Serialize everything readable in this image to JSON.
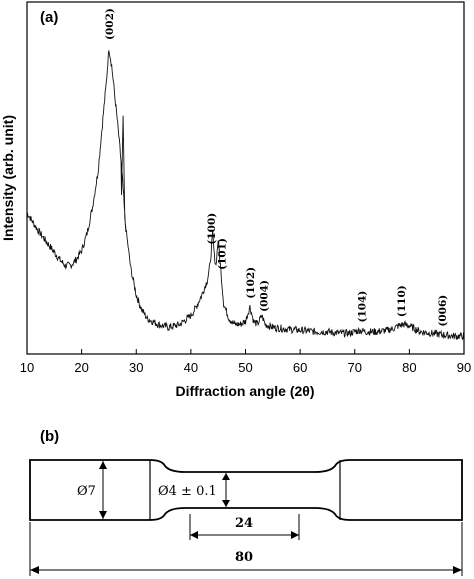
{
  "figure": {
    "panel_a_label": "(a)",
    "panel_b_label": "(b)"
  },
  "chart_data": {
    "type": "line",
    "xlabel": "Diffraction angle (2θ)",
    "ylabel": "Intensity (arb. unit)",
    "xlim": [
      10,
      90
    ],
    "xticks": [
      10,
      20,
      30,
      40,
      50,
      60,
      70,
      80,
      90
    ],
    "y_ticks_shown": false,
    "grid": false,
    "series": [
      {
        "x": [
          10,
          12,
          14,
          16,
          17,
          18,
          19,
          20,
          21,
          22,
          23,
          24,
          24.5,
          25,
          25.5,
          26,
          26.5,
          27,
          27.5,
          28,
          29,
          30,
          31,
          32,
          34,
          36,
          38,
          40,
          41,
          42,
          43,
          43.5,
          44,
          44.3,
          44.6,
          45,
          45.5,
          46,
          47,
          48,
          49,
          50,
          50.8,
          51.5,
          52.2,
          53,
          53.6,
          55,
          57,
          60,
          63,
          65,
          67,
          69,
          70,
          71,
          72,
          74,
          76,
          77,
          78,
          79,
          80,
          81,
          82,
          84,
          86,
          88,
          90
        ],
        "y": [
          0.44,
          0.38,
          0.33,
          0.28,
          0.26,
          0.26,
          0.28,
          0.31,
          0.37,
          0.46,
          0.58,
          0.78,
          0.88,
          1.0,
          0.94,
          0.85,
          0.76,
          0.66,
          0.55,
          0.4,
          0.25,
          0.16,
          0.11,
          0.08,
          0.06,
          0.05,
          0.06,
          0.09,
          0.12,
          0.16,
          0.21,
          0.26,
          0.37,
          0.29,
          0.26,
          0.35,
          0.24,
          0.13,
          0.08,
          0.06,
          0.06,
          0.07,
          0.12,
          0.07,
          0.06,
          0.09,
          0.06,
          0.05,
          0.045,
          0.04,
          0.035,
          0.035,
          0.03,
          0.03,
          0.035,
          0.04,
          0.035,
          0.035,
          0.04,
          0.045,
          0.055,
          0.06,
          0.055,
          0.045,
          0.035,
          0.03,
          0.025,
          0.02,
          0.02
        ]
      }
    ],
    "annotations": [
      {
        "text": "(002)",
        "x": 25
      },
      {
        "text": "(100)",
        "x": 43.7
      },
      {
        "text": "(101)",
        "x": 45.6
      },
      {
        "text": "(102)",
        "x": 50.8
      },
      {
        "text": "(004)",
        "x": 53.3
      },
      {
        "text": "(104)",
        "x": 71.2
      },
      {
        "text": "(110)",
        "x": 78.5
      },
      {
        "text": "(006)",
        "x": 86
      }
    ]
  },
  "specimen_drawing": {
    "grip_diameter": "Ø7",
    "gauge_diameter": "Ø4 ± 0.1",
    "gauge_length": "24",
    "total_length": "80"
  }
}
